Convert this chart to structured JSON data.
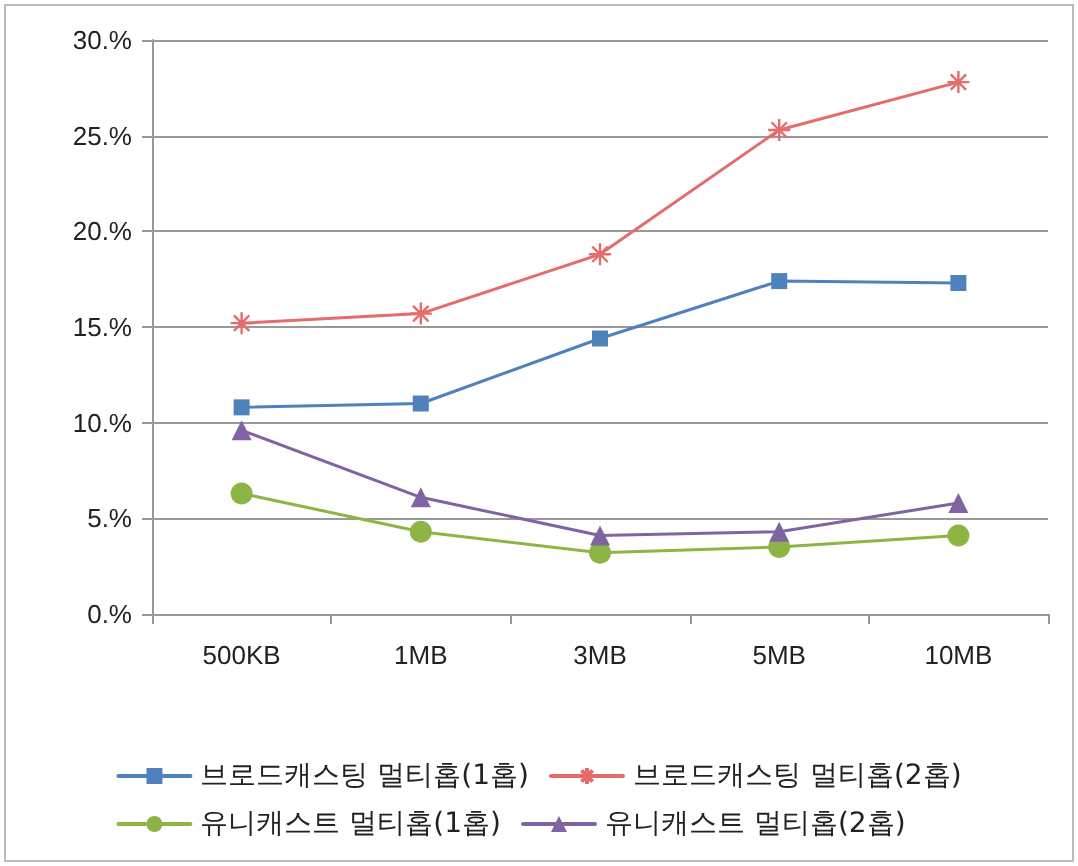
{
  "chart_data": {
    "type": "line",
    "categories": [
      "500KB",
      "1MB",
      "3MB",
      "5MB",
      "10MB"
    ],
    "series": [
      {
        "name": "브로드캐스팅 멀티홉(1홉)",
        "color": "#4f81bd",
        "marker": "square",
        "values": [
          10.8,
          11.0,
          14.4,
          17.4,
          17.3
        ]
      },
      {
        "name": "브로드캐스팅 멀티홉(2홉)",
        "color": "#e46c6a",
        "marker": "cross",
        "values": [
          15.2,
          15.7,
          18.8,
          25.3,
          27.8
        ]
      },
      {
        "name": "유니캐스트 멀티홉(1홉)",
        "color": "#8db545",
        "marker": "circle",
        "values": [
          6.3,
          4.3,
          3.2,
          3.5,
          4.1
        ]
      },
      {
        "name": "유니캐스트 멀티홉(2홉)",
        "color": "#8064a2",
        "marker": "triangle",
        "values": [
          9.6,
          6.1,
          4.1,
          4.3,
          5.8
        ]
      }
    ],
    "ylim": [
      0,
      30
    ],
    "yticks": [
      {
        "value": 0,
        "label": "0.%"
      },
      {
        "value": 5,
        "label": "5.%"
      },
      {
        "value": 10,
        "label": "10.%"
      },
      {
        "value": 15,
        "label": "15.%"
      },
      {
        "value": 20,
        "label": "20.%"
      },
      {
        "value": 25,
        "label": "25.%"
      },
      {
        "value": 30,
        "label": "30.%"
      }
    ],
    "grid": "y",
    "legend": "bottom",
    "line_style": "solid"
  }
}
